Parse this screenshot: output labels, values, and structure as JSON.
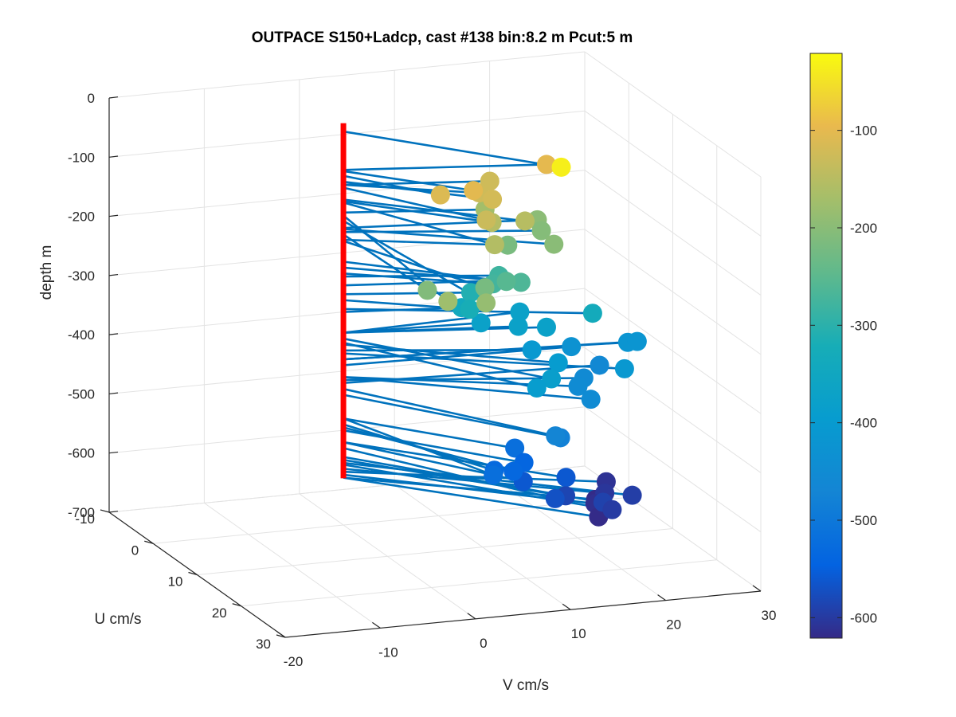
{
  "chart_data": {
    "type": "scatter",
    "title": "OUTPACE S150+Ladcp, cast #138 bin:8.2 m  Pcut:5 m",
    "xlabel": "V cm/s",
    "ylabel": "U cm/s",
    "zlabel": "depth m",
    "xlim": [
      -20,
      30
    ],
    "ylim": [
      -10,
      30
    ],
    "zlim": [
      -700,
      0
    ],
    "xticks": [
      "-20",
      "-10",
      "0",
      "10",
      "20",
      "30"
    ],
    "yticks": [
      "-10",
      "0",
      "10",
      "20",
      "30"
    ],
    "zticks": [
      "0",
      "-100",
      "-200",
      "-300",
      "-400",
      "-500",
      "-600",
      "-700"
    ],
    "grid": true,
    "colorbar": {
      "ticks": [
        "-100",
        "-200",
        "-300",
        "-400",
        "-500",
        "-600"
      ],
      "range": [
        -621,
        -21
      ],
      "colormap": "parula"
    },
    "axis_line": {
      "color": "#ff0000",
      "from_depth": -21,
      "to_depth": -621
    },
    "stick_color": "#0072bd",
    "points": [
      {
        "v": -1.5,
        "u": 27.0,
        "depth": -177
      },
      {
        "v": 2.5,
        "u": 27.0,
        "depth": -186
      },
      {
        "v": 0.5,
        "u": 18.0,
        "depth": -209
      },
      {
        "v": 19.5,
        "u": 4.0,
        "depth": -100
      },
      {
        "v": 15.5,
        "u": 16.0,
        "depth": -35
      },
      {
        "v": 14.0,
        "u": 3.0,
        "depth": -125
      },
      {
        "v": 6.5,
        "u": 8.0,
        "depth": -110
      },
      {
        "v": 9.5,
        "u": 9.0,
        "depth": -102
      },
      {
        "v": 11.5,
        "u": 9.0,
        "depth": -120
      },
      {
        "v": 11.5,
        "u": 6.0,
        "depth": -125
      },
      {
        "v": 9.0,
        "u": 13.0,
        "depth": -130
      },
      {
        "v": 14.0,
        "u": 11.0,
        "depth": -150
      },
      {
        "v": 8.5,
        "u": 16.0,
        "depth": -155
      },
      {
        "v": 11.0,
        "u": 10.0,
        "depth": -153
      },
      {
        "v": 13.5,
        "u": 3.0,
        "depth": -172
      },
      {
        "v": 19.0,
        "u": 3.0,
        "depth": -198
      },
      {
        "v": 17.5,
        "u": 10.0,
        "depth": -200
      },
      {
        "v": 18.5,
        "u": 5.0,
        "depth": -205
      },
      {
        "v": 14.5,
        "u": 6.0,
        "depth": -218
      },
      {
        "v": 7.0,
        "u": 17.0,
        "depth": -220
      },
      {
        "v": 12.5,
        "u": 10.0,
        "depth": -255
      },
      {
        "v": 14.5,
        "u": 9.0,
        "depth": -265
      },
      {
        "v": 12.5,
        "u": 7.0,
        "depth": -275
      },
      {
        "v": 14.5,
        "u": 4.0,
        "depth": -280
      },
      {
        "v": 15.5,
        "u": 3.0,
        "depth": -295
      },
      {
        "v": 12.0,
        "u": 3.0,
        "depth": -310
      },
      {
        "v": 10.5,
        "u": 6.0,
        "depth": -320
      },
      {
        "v": 22.5,
        "u": 8.0,
        "depth": -335
      },
      {
        "v": 11.5,
        "u": 2.0,
        "depth": -340
      },
      {
        "v": 14.0,
        "u": 1.0,
        "depth": -375
      },
      {
        "v": 17.0,
        "u": 3.0,
        "depth": -375
      },
      {
        "v": 19.5,
        "u": 4.0,
        "depth": -375
      },
      {
        "v": 19.0,
        "u": -1.0,
        "depth": -375
      },
      {
        "v": 17.5,
        "u": 11.0,
        "depth": -395
      },
      {
        "v": 14.0,
        "u": 17.0,
        "depth": -385
      },
      {
        "v": 12.0,
        "u": 18.0,
        "depth": -392
      },
      {
        "v": 17.5,
        "u": 5.0,
        "depth": -405
      },
      {
        "v": 24.0,
        "u": 12.0,
        "depth": -410
      },
      {
        "v": 28.5,
        "u": 3.0,
        "depth": -420
      },
      {
        "v": 29.5,
        "u": 3.0,
        "depth": -420
      },
      {
        "v": 23.5,
        "u": 1.0,
        "depth": -430
      },
      {
        "v": 20.0,
        "u": 13.0,
        "depth": -450
      },
      {
        "v": 20.5,
        "u": 9.0,
        "depth": -450
      },
      {
        "v": 22.5,
        "u": 6.0,
        "depth": -455
      },
      {
        "v": 26.0,
        "u": 2.0,
        "depth": -460
      },
      {
        "v": 13.5,
        "u": 19.0,
        "depth": -470
      },
      {
        "v": 14.5,
        "u": 18.0,
        "depth": -480
      },
      {
        "v": 6.5,
        "u": 20.0,
        "depth": -520
      },
      {
        "v": 12.0,
        "u": 13.0,
        "depth": -520
      },
      {
        "v": 8.0,
        "u": 17.0,
        "depth": -530
      },
      {
        "v": 10.0,
        "u": 17.0,
        "depth": -535
      },
      {
        "v": 12.5,
        "u": 14.0,
        "depth": -540
      },
      {
        "v": 16.0,
        "u": 16.0,
        "depth": -560
      },
      {
        "v": 11.5,
        "u": 16.0,
        "depth": -560
      },
      {
        "v": 13.0,
        "u": 20.0,
        "depth": -570
      },
      {
        "v": 15.5,
        "u": 17.0,
        "depth": -585
      },
      {
        "v": 18.5,
        "u": 19.0,
        "depth": -590
      },
      {
        "v": 22.5,
        "u": 17.0,
        "depth": -595
      },
      {
        "v": 19.0,
        "u": 20.0,
        "depth": -598
      },
      {
        "v": 21.0,
        "u": 14.0,
        "depth": -605
      },
      {
        "v": 23.0,
        "u": 10.0,
        "depth": -610
      },
      {
        "v": 19.5,
        "u": 15.0,
        "depth": -615
      },
      {
        "v": 20.5,
        "u": 13.0,
        "depth": -620
      },
      {
        "v": 18.5,
        "u": 18.0,
        "depth": -620
      }
    ]
  }
}
